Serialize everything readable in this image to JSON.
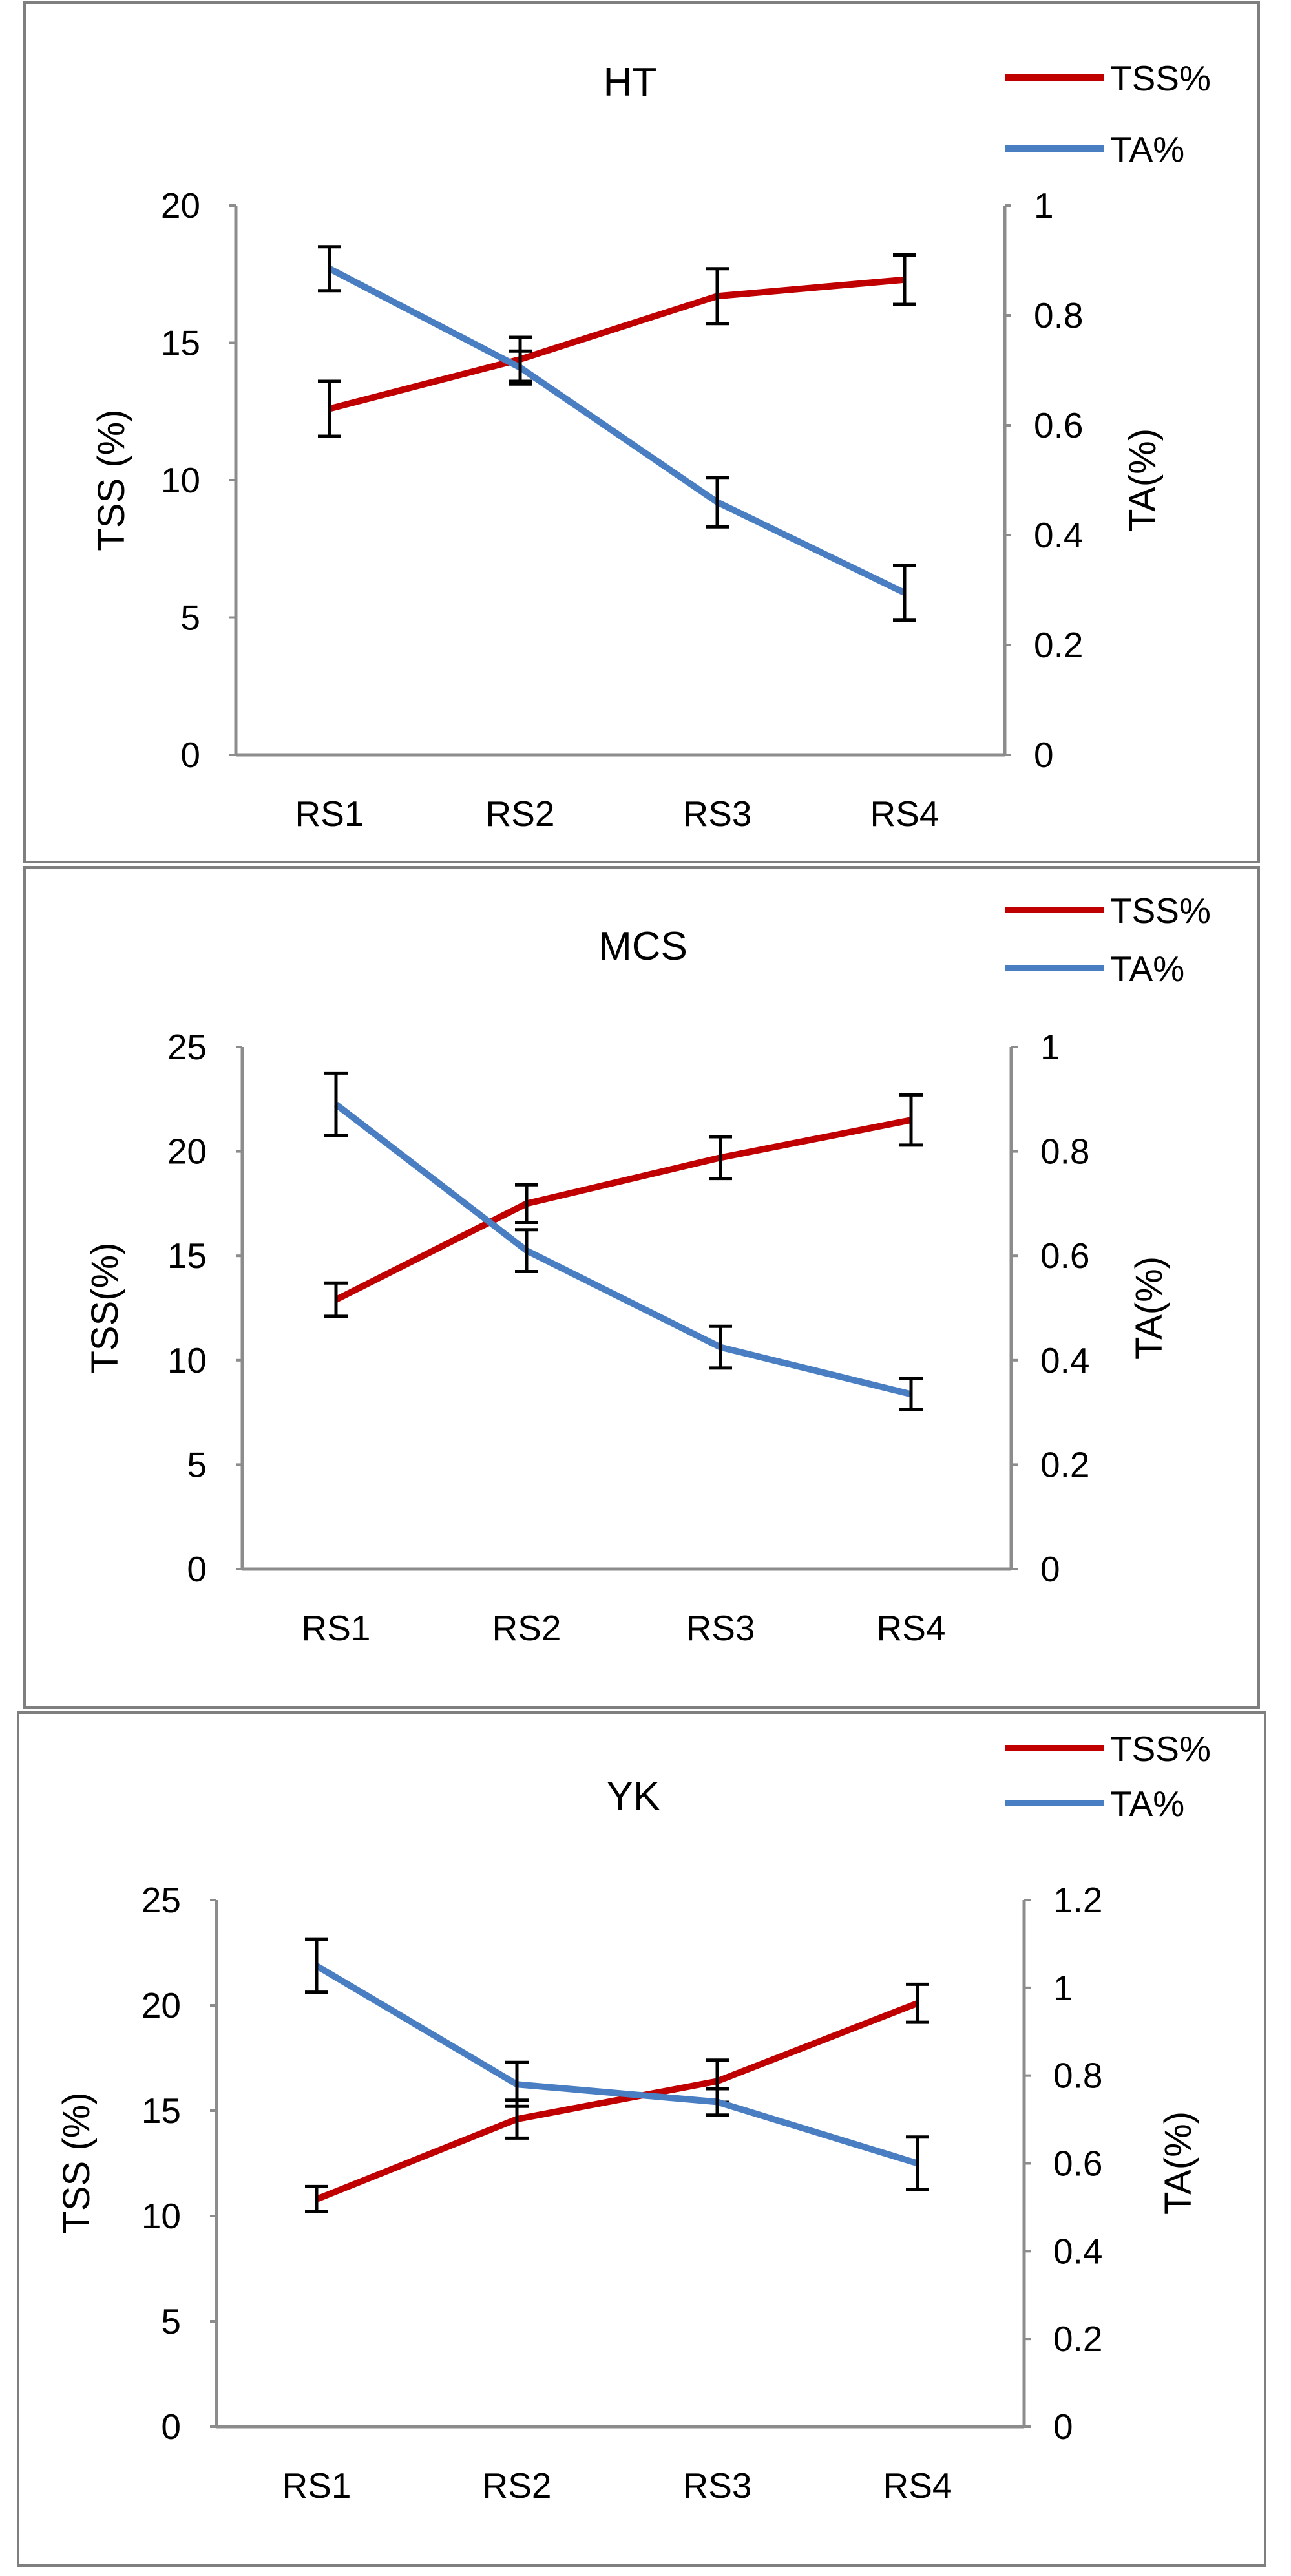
{
  "colors": {
    "tss": "#C00000",
    "ta": "#4A7EC2",
    "axis": "#8C8C8C",
    "frame": "#7F7F7F",
    "errorbar": "#000000"
  },
  "chart_data": [
    {
      "type": "line",
      "title": "HT",
      "categories": [
        "RS1",
        "RS2",
        "RS3",
        "RS4"
      ],
      "ylabel": "TSS (%)",
      "y2label": "TA(%)",
      "ylim": [
        0,
        20
      ],
      "y2lim": [
        0,
        1
      ],
      "yticks": [
        "0",
        "5",
        "10",
        "15",
        "20"
      ],
      "y2ticks": [
        "0",
        "0.2",
        "0.4",
        "0.6",
        "0.8",
        "1"
      ],
      "legend": {
        "position": "top-right",
        "tss_label": "TSS%",
        "ta_label": "TA%"
      },
      "series": [
        {
          "name": "TSS%",
          "axis": "left",
          "values": [
            12.6,
            14.4,
            16.7,
            17.3
          ],
          "errors": [
            1.0,
            0.8,
            1.0,
            0.9
          ]
        },
        {
          "name": "TA%",
          "axis": "right",
          "values": [
            0.885,
            0.705,
            0.46,
            0.295
          ],
          "errors": [
            0.04,
            0.03,
            0.045,
            0.05
          ]
        }
      ]
    },
    {
      "type": "line",
      "title": "MCS",
      "categories": [
        "RS1",
        "RS2",
        "RS3",
        "RS4"
      ],
      "ylabel": "TSS(%)",
      "y2label": "TA(%)",
      "ylim": [
        0,
        25
      ],
      "y2lim": [
        0,
        1
      ],
      "yticks": [
        "0",
        "5",
        "10",
        "15",
        "20",
        "25"
      ],
      "y2ticks": [
        "0",
        "0.2",
        "0.4",
        "0.6",
        "0.8",
        "1"
      ],
      "legend": {
        "position": "top-right",
        "tss_label": "TSS%",
        "ta_label": "TA%"
      },
      "series": [
        {
          "name": "TSS%",
          "axis": "left",
          "values": [
            12.9,
            17.5,
            19.7,
            21.5
          ],
          "errors": [
            0.8,
            0.9,
            1.0,
            1.2
          ]
        },
        {
          "name": "TA%",
          "axis": "right",
          "values": [
            0.89,
            0.61,
            0.425,
            0.335
          ],
          "errors": [
            0.06,
            0.04,
            0.04,
            0.03
          ]
        }
      ]
    },
    {
      "type": "line",
      "title": "YK",
      "categories": [
        "RS1",
        "RS2",
        "RS3",
        "RS4"
      ],
      "ylabel": "TSS (%)",
      "y2label": "TA(%)",
      "ylim": [
        0,
        25
      ],
      "y2lim": [
        0,
        1.2
      ],
      "yticks": [
        "0",
        "5",
        "10",
        "15",
        "20",
        "25"
      ],
      "y2ticks": [
        "0",
        "0.2",
        "0.4",
        "0.6",
        "0.8",
        "1",
        "1.2"
      ],
      "legend": {
        "position": "top-right",
        "tss_label": "TSS%",
        "ta_label": "TA%"
      },
      "series": [
        {
          "name": "TSS%",
          "axis": "left",
          "values": [
            10.8,
            14.6,
            16.4,
            20.1
          ],
          "errors": [
            0.6,
            0.9,
            1.0,
            0.9
          ]
        },
        {
          "name": "TA%",
          "axis": "right",
          "values": [
            1.05,
            0.78,
            0.74,
            0.6
          ],
          "errors": [
            0.06,
            0.05,
            0.03,
            0.06
          ]
        }
      ]
    }
  ]
}
